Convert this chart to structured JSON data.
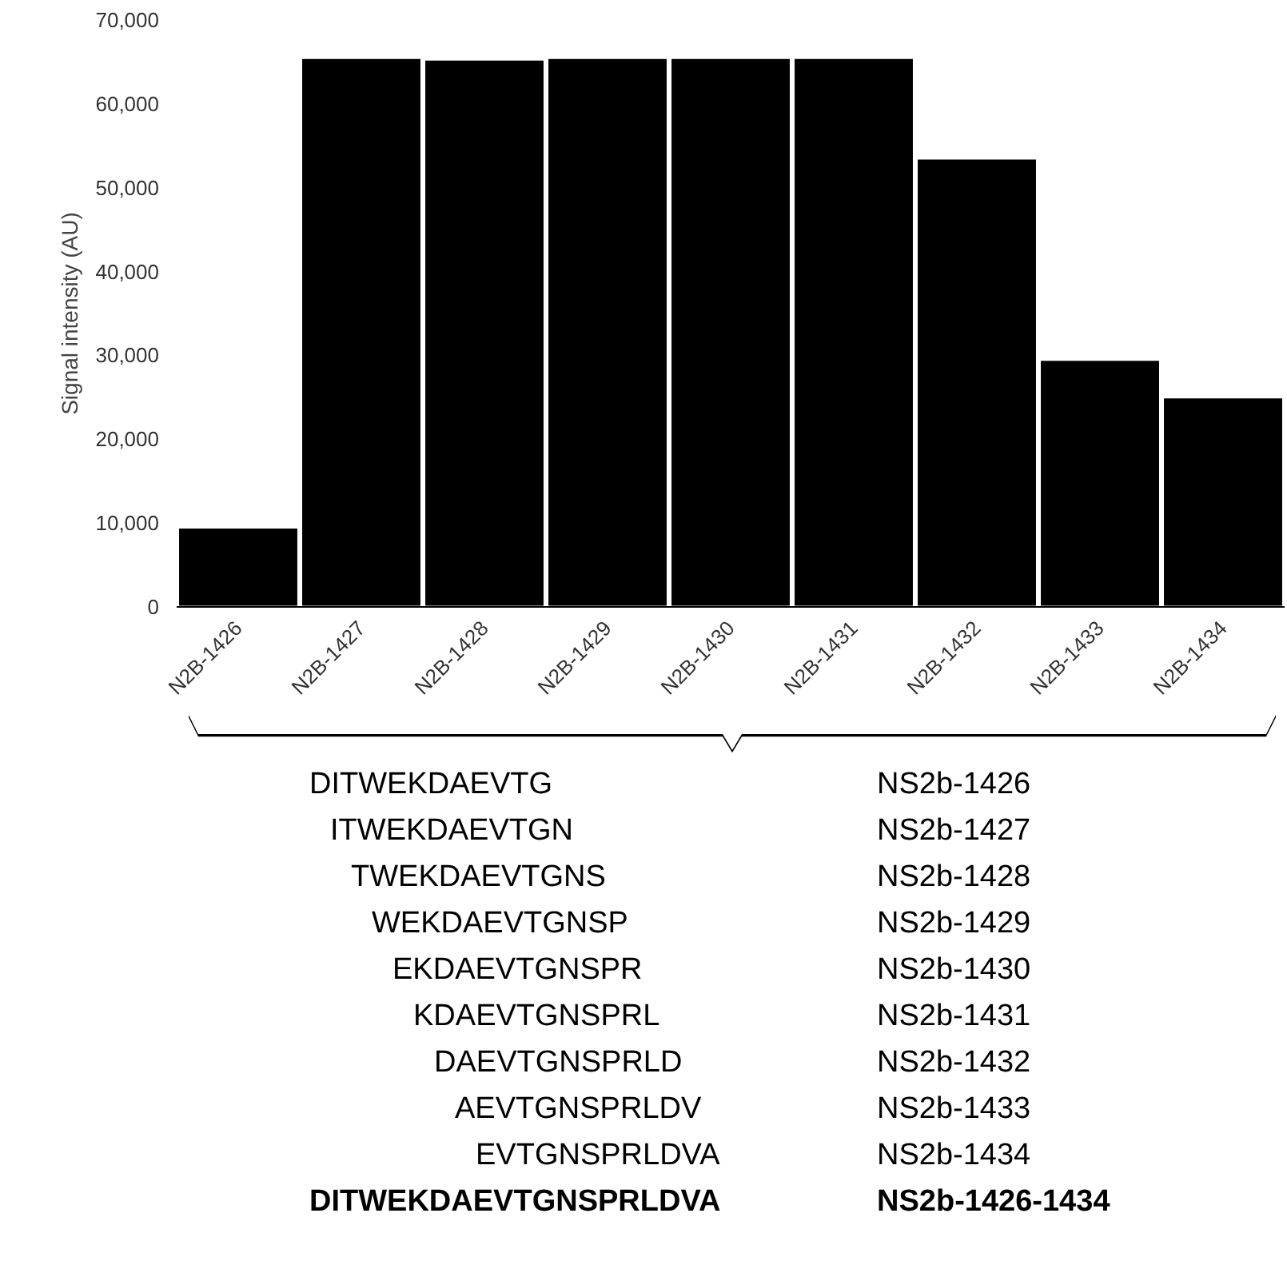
{
  "chart_data": {
    "type": "bar",
    "ylabel": "Signal intensity (AU)",
    "categories": [
      "N2B-1426",
      "N2B-1427",
      "N2B-1428",
      "N2B-1429",
      "N2B-1430",
      "N2B-1431",
      "N2B-1432",
      "N2B-1433",
      "N2B-1434"
    ],
    "values": [
      9500,
      65500,
      65300,
      65500,
      65500,
      65500,
      53500,
      29500,
      25000
    ],
    "color": "#000000",
    "ylim": [
      0,
      70000
    ],
    "yticks": [
      0,
      {
        "value": 10000,
        "label": "10,000"
      },
      {
        "value": 20000,
        "label": "20,000"
      },
      {
        "value": 30000,
        "label": "30,000"
      },
      {
        "value": 40000,
        "label": "40,000"
      },
      {
        "value": 50000,
        "label": "50,000"
      },
      {
        "value": 60000,
        "label": "60,000"
      },
      {
        "value": 70000,
        "label": "70,000"
      }
    ],
    "grid": false,
    "annotations": [
      "DITWEKDAEVTG",
      "NS2b-1426",
      "ITWEKDAEVTGN",
      "NS2b-1427",
      "TWEKDAEVTGNS",
      "NS2b-1428",
      "WEKDAEVTGNSP",
      "NS2b-1429",
      "EKDAEVTGNSPR",
      "NS2b-1430",
      "KDAEVTGNSPRL",
      "NS2b-1431",
      "DAEVTGNSPRLD",
      "NS2b-1432",
      "AEVTGNSPRLDV",
      "NS2b-1433",
      "EVTGNSPRLDVA",
      "NS2b-1434",
      "DITWEKDAEVTGNSPRLDVA",
      "NS2b-1426-1434"
    ]
  }
}
